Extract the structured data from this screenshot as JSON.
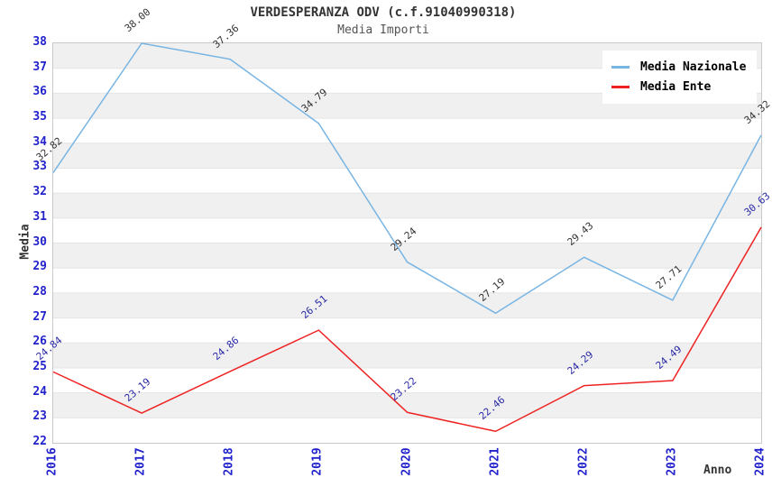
{
  "title": "VERDESPERANZA ODV (c.f.91040990318)",
  "subtitle": "Media Importi",
  "colors": {
    "nazionale_line": "#79b5e3",
    "ente_line": "#ee2222",
    "axis_tick_label": "#2222cc",
    "nazionale_point_label": "#333333",
    "ente_point_label": "#2a2aa8",
    "stripe_band": "#f0f0f0",
    "grid_line": "#e4e4e4",
    "plot_border": "#c9c9c9"
  },
  "legend": {
    "items": [
      {
        "label": "Media Nazionale",
        "color": "#79b5e3"
      },
      {
        "label": "Media Ente",
        "color": "#ee2222"
      }
    ]
  },
  "chart_data": {
    "type": "line",
    "title": "VERDESPERANZA ODV (c.f.91040990318)",
    "subtitle": "Media Importi",
    "xlabel": "Anno",
    "ylabel": "Media",
    "x": [
      2016,
      2017,
      2018,
      2019,
      2020,
      2021,
      2022,
      2023,
      2024
    ],
    "series": [
      {
        "name": "Media Nazionale",
        "color": "#79b5e3",
        "label_color": "#333333",
        "values": [
          32.82,
          38.0,
          37.36,
          34.79,
          29.24,
          27.19,
          29.43,
          27.71,
          34.32
        ]
      },
      {
        "name": "Media Ente",
        "color": "#ee2222",
        "label_color": "#2a2aa8",
        "values": [
          24.84,
          23.19,
          24.86,
          26.51,
          23.22,
          22.46,
          24.29,
          24.49,
          30.63
        ]
      }
    ],
    "ylim": [
      22,
      38
    ],
    "ytick_step": 1,
    "grid": "horizontal-stripes-alternating",
    "legend_position": "top-right",
    "point_label_format": "2-decimals",
    "point_label_rotation_deg": -40
  }
}
